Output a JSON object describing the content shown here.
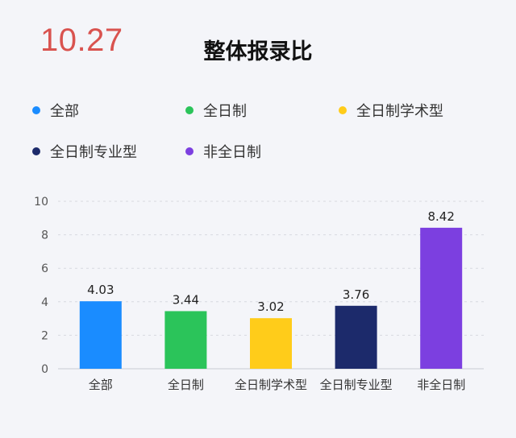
{
  "header": {
    "date": "10.27",
    "title": "整体报录比"
  },
  "chart_data": {
    "type": "bar",
    "title": "整体报录比",
    "categories": [
      "全部",
      "全日制",
      "全日制学术型",
      "全日制专业型",
      "非全日制"
    ],
    "values": [
      4.03,
      3.44,
      3.02,
      3.76,
      8.42
    ],
    "value_labels": [
      "4.03",
      "3.44",
      "3.02",
      "3.76",
      "8.42"
    ],
    "series": [
      {
        "name": "全部"
      },
      {
        "name": "全日制"
      },
      {
        "name": "全日制学术型"
      },
      {
        "name": "全日制专业型"
      },
      {
        "name": "非全日制"
      }
    ],
    "colors": [
      "#1a8cff",
      "#2bc45a",
      "#ffcc1a",
      "#1c2a6b",
      "#7c3fe0"
    ],
    "ylim": [
      0,
      10
    ],
    "yticks": [
      "0",
      "2",
      "4",
      "6",
      "8",
      "10"
    ],
    "grid": true,
    "legend_position": "top",
    "xlabel": "",
    "ylabel": ""
  }
}
